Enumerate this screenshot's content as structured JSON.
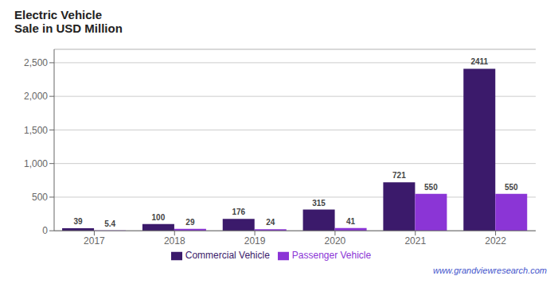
{
  "chart_data": {
    "type": "bar",
    "title": "Electric Vehicle",
    "subtitle": "Sale in USD Million",
    "categories": [
      "2017",
      "2018",
      "2019",
      "2020",
      "2021",
      "2022"
    ],
    "series": [
      {
        "name": "Commercial Vehicle",
        "color": "#3b1a6b",
        "values": [
          38.6,
          99.8,
          176.0,
          315.0,
          721.0,
          2411.0
        ],
        "value_labels": [
          "39",
          "100",
          "176",
          "315",
          "721",
          "2411"
        ]
      },
      {
        "name": "Passenger Vehicle",
        "color": "#8b35d6",
        "values": [
          5.4,
          29.4,
          24.2,
          41.0,
          550.0,
          550.0
        ],
        "value_labels": [
          "5.4",
          "29",
          "24",
          "41",
          "550",
          "550"
        ]
      }
    ],
    "ylim": [
      0,
      2700
    ],
    "yticks": [
      0,
      500,
      {
        "value": 1000,
        "label": "1,000"
      },
      {
        "value": 1500,
        "label": "1,500"
      },
      {
        "value": 2000,
        "label": "2,000"
      },
      {
        "value": 2500,
        "label": "2,500"
      }
    ],
    "grid": true,
    "legend": "bottom",
    "data_labels": true,
    "annotations": [
      "www.grandviewresearch.com"
    ]
  }
}
